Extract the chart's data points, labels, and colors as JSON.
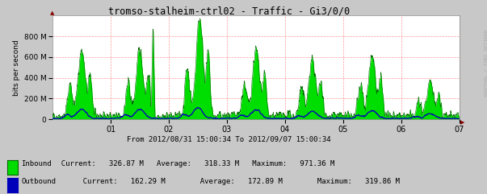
{
  "title": "tromso-stalheim-ctrl02 - Traffic - Gi3/0/0",
  "subtitle": "From 2012/08/31 15:00:34 To 2012/09/07 15:00:34",
  "ylabel": "bits per second",
  "bg_color": "#c8c8c8",
  "plot_bg_color": "#ffffff",
  "grid_color": "#ff9999",
  "inbound_color": "#00dd00",
  "inbound_edge_color": "#006600",
  "outbound_color": "#0000bb",
  "x_tick_labels": [
    "01",
    "02",
    "03",
    "04",
    "05",
    "06",
    "07"
  ],
  "y_ticks": [
    0,
    200,
    400,
    600,
    800
  ],
  "watermark": "RRDTOOL / TOBI OETIKER",
  "legend_inbound_label": "Inbound",
  "legend_outbound_label": "Outbound",
  "legend_inbound_stats": "  Current:   326.87 M   Average:   318.33 M   Maximum:   971.36 M",
  "legend_outbound_stats": "       Current:   162.29 M        Average:   172.89 M        Maximum:   319.86 M",
  "num_points": 2000,
  "seed": 42,
  "max_inbound": 971000000.0,
  "max_outbound": 320000000.0,
  "ylim_max": 1000000000.0
}
